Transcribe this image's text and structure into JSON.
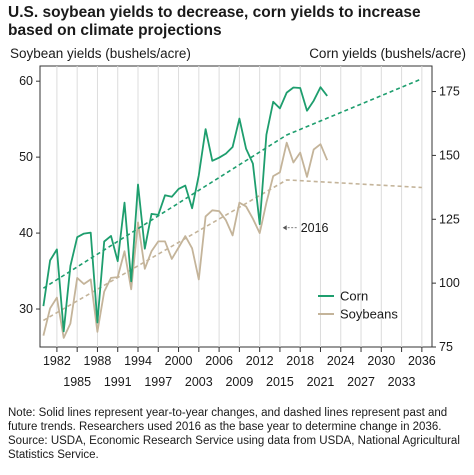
{
  "chart_data": {
    "type": "line",
    "title": "U.S. soybean yields to decrease, corn yields to increase based on climate projections",
    "left_axis_label": "Soybean yields (bushels/acre)",
    "right_axis_label": "Corn yields (bushels/acre)",
    "left_ylim": [
      25,
      62
    ],
    "right_ylim": [
      75,
      185
    ],
    "left_ticks": [
      30,
      40,
      50,
      60
    ],
    "right_ticks": [
      75,
      100,
      125,
      150,
      175
    ],
    "xlim": [
      1979.5,
      2037.5
    ],
    "x_ticks_upper": [
      1982,
      1988,
      1994,
      2000,
      2006,
      2012,
      2018,
      2024,
      2030,
      2036
    ],
    "x_ticks_lower": [
      1985,
      1991,
      1997,
      2003,
      2009,
      2015,
      2021,
      2027,
      2033
    ],
    "grid": "vertical",
    "legend": "bottom-right",
    "series": [
      {
        "name": "Corn",
        "axis": "right",
        "color": "#1e9e6e",
        "x": [
          1980,
          1981,
          1982,
          1983,
          1984,
          1985,
          1986,
          1987,
          1988,
          1989,
          1990,
          1991,
          1992,
          1993,
          1994,
          1995,
          1996,
          1997,
          1998,
          1999,
          2000,
          2001,
          2002,
          2003,
          2004,
          2005,
          2006,
          2007,
          2008,
          2009,
          2010,
          2011,
          2012,
          2013,
          2014,
          2015,
          2016,
          2017,
          2018,
          2019,
          2020,
          2021,
          2022
        ],
        "values": [
          91,
          108.9,
          113.2,
          81.1,
          106.7,
          118,
          119.4,
          119.8,
          84.6,
          116.3,
          118.5,
          108.6,
          131.5,
          100.7,
          138.6,
          113.5,
          127.1,
          126.7,
          134.4,
          133.8,
          136.9,
          138.2,
          129.3,
          142.2,
          160.3,
          147.9,
          149.1,
          150.7,
          153.3,
          164.4,
          152.6,
          146.8,
          123.1,
          158.1,
          171,
          168.4,
          174.6,
          176.6,
          176.4,
          167.5,
          171.4,
          176.7,
          173.3
        ]
      },
      {
        "name": "Soybeans",
        "axis": "left",
        "color": "#c4b49a",
        "x": [
          1980,
          1981,
          1982,
          1983,
          1984,
          1985,
          1986,
          1987,
          1988,
          1989,
          1990,
          1991,
          1992,
          1993,
          1994,
          1995,
          1996,
          1997,
          1998,
          1999,
          2000,
          2001,
          2002,
          2003,
          2004,
          2005,
          2006,
          2007,
          2008,
          2009,
          2010,
          2011,
          2012,
          2013,
          2014,
          2015,
          2016,
          2017,
          2018,
          2019,
          2020,
          2021,
          2022
        ],
        "values": [
          26.5,
          30.1,
          31.5,
          26.2,
          28.1,
          34.1,
          33.3,
          33.9,
          27,
          32.3,
          34.1,
          34.2,
          37.6,
          32.6,
          41.4,
          35.3,
          37.6,
          38.9,
          38.9,
          36.6,
          38.1,
          39.6,
          38,
          33.9,
          42.2,
          43,
          42.9,
          41.7,
          39.7,
          44,
          43.5,
          41.9,
          40,
          44,
          47.5,
          48,
          51.9,
          49.3,
          50.6,
          47.4,
          51,
          51.7,
          49.6
        ]
      },
      {
        "name": "Corn trend",
        "axis": "right",
        "dashed": true,
        "color": "#1e9e6e",
        "x": [
          1980,
          2016,
          2036
        ],
        "values": [
          98,
          158,
          180
        ]
      },
      {
        "name": "Soybeans trend",
        "axis": "left",
        "dashed": true,
        "color": "#c4b49a",
        "x": [
          1980,
          2016,
          2036
        ],
        "values": [
          28.5,
          47,
          46
        ]
      }
    ],
    "annotation": {
      "text": "2016"
    },
    "legend_entries": [
      "Corn",
      "Soybeans"
    ]
  },
  "note": {
    "text": "Note: Solid lines represent year-to-year changes, and dashed lines represent past and future trends. Researchers used 2016 as the base year to determine change in 2036.",
    "source": "Source: USDA, Economic Research Service using data from USDA, National Agricultural Statistics Service."
  }
}
